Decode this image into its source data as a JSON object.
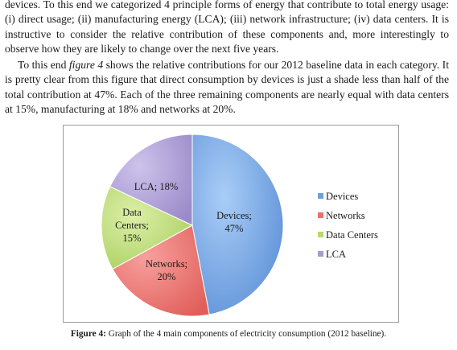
{
  "paragraphs": {
    "p1": "devices. To this end we categorized 4 principle forms of energy that contribute to total energy usage: (i) direct usage; (ii) manufacturing energy (LCA); (iii) network infrastructure; (iv) data centers. It is instructive to consider the relative contribution of these components and, more interestingly to observe how they are likely to change over the next five years.",
    "p2_before": "To this end ",
    "p2_ref": "figure 4",
    "p2_after": " shows the relative contributions for our 2012 baseline data in each category. It is pretty clear from this figure that direct consumption by devices is just a shade less than half of the total contribution at 47%. Each of the three remaining components are nearly equal with data centers at 15%, manufacturing at 18% and networks at 20%."
  },
  "chart_data": {
    "type": "pie",
    "title": "",
    "slices": [
      {
        "name": "Devices",
        "value": 47,
        "label_lines": [
          "Devices;",
          "47%"
        ],
        "color": "#6f9fdf"
      },
      {
        "name": "Networks",
        "value": 20,
        "label_lines": [
          "Networks;",
          "20%"
        ],
        "color": "#e8706e"
      },
      {
        "name": "Data Centers",
        "value": 15,
        "label_lines": [
          "Data",
          "Centers;",
          "15%"
        ],
        "color": "#b7d86e"
      },
      {
        "name": "LCA",
        "value": 18,
        "label_lines": [
          "LCA; 18%"
        ],
        "color": "#a99ad0"
      }
    ],
    "legend": [
      "Devices",
      "Networks",
      "Data Centers",
      "LCA"
    ],
    "legend_position": "right"
  },
  "caption": {
    "label": "Figure 4:",
    "text": " Graph of the 4 main components of electricity consumption (2012 baseline)."
  }
}
